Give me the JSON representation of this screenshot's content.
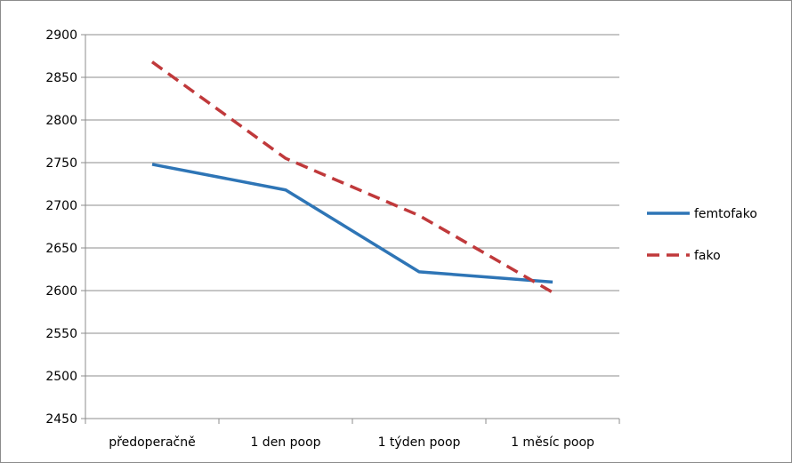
{
  "chart_data": {
    "type": "line",
    "title": "",
    "xlabel": "",
    "ylabel": "",
    "categories": [
      "předoperačně",
      "1 den poop",
      "1 týden poop",
      "1 měsíc poop"
    ],
    "ylim": [
      2450,
      2900
    ],
    "yticks": [
      2450,
      2500,
      2550,
      2600,
      2650,
      2700,
      2750,
      2800,
      2850,
      2900
    ],
    "grid": true,
    "legend_position": "right",
    "series": [
      {
        "name": "femtofako",
        "values": [
          2748,
          2718,
          2622,
          2610
        ],
        "color": "#2e75b6",
        "style": "solid"
      },
      {
        "name": "fako",
        "values": [
          2868,
          2755,
          2688,
          2598
        ],
        "color": "#c0393b",
        "style": "dashed"
      }
    ]
  }
}
